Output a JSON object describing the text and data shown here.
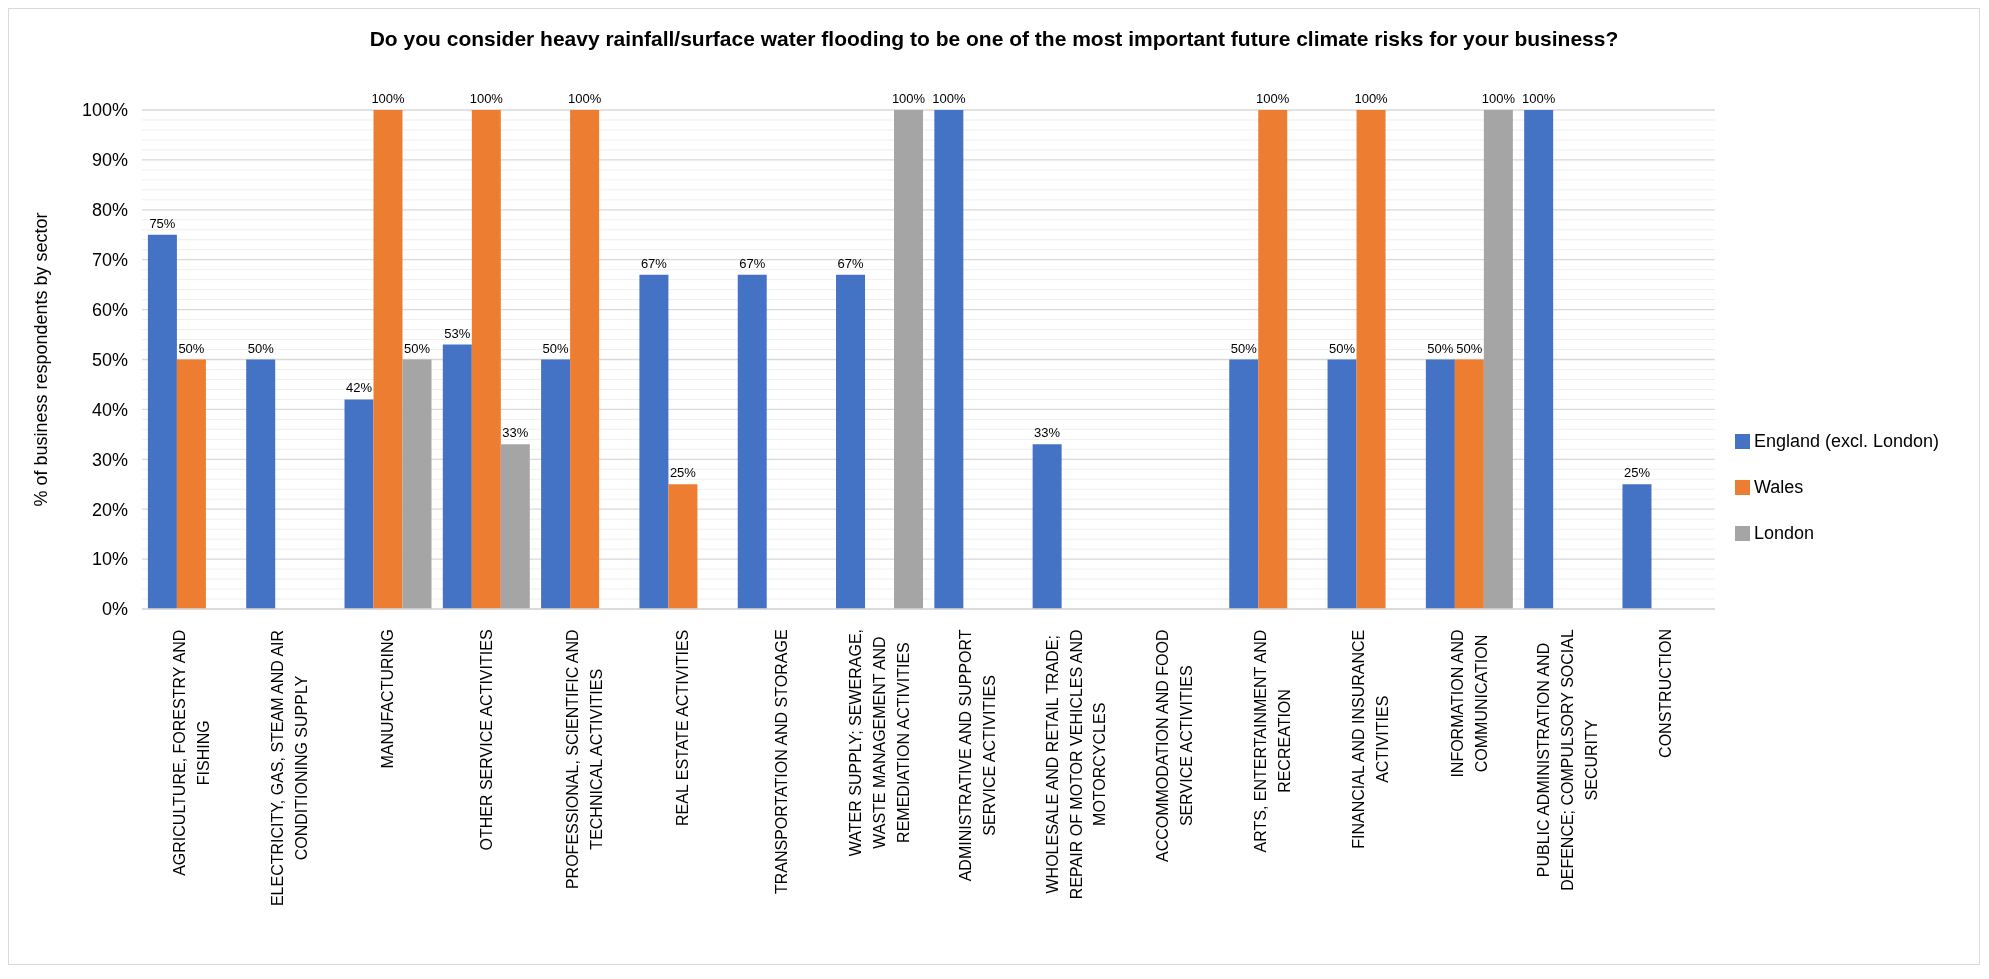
{
  "chart_data": {
    "type": "bar",
    "title": "Do you consider heavy rainfall/surface water flooding to be one of the most important future climate risks for your business?",
    "ylabel": "% of business respondents by sector",
    "categories": [
      "AGRICULTURE, FORESTRY AND FISHING",
      "ELECTRICITY, GAS, STEAM AND AIR CONDITIONING SUPPLY",
      "MANUFACTURING",
      "OTHER SERVICE ACTIVITIES",
      "PROFESSIONAL, SCIENTIFIC AND TECHNICAL ACTIVITIES",
      "REAL ESTATE ACTIVITIES",
      "TRANSPORTATION AND STORAGE",
      "WATER SUPPLY; SEWERAGE, WASTE MANAGEMENT AND REMEDIATION ACTIVITIES",
      "ADMINISTRATIVE AND SUPPORT SERVICE ACTIVITIES",
      "WHOLESALE AND RETAIL TRADE; REPAIR OF MOTOR VEHICLES AND MOTORCYCLES",
      "ACCOMMODATION AND FOOD SERVICE ACTIVITIES",
      "ARTS, ENTERTAINMENT AND RECREATION",
      "FINANCIAL AND INSURANCE ACTIVITIES",
      "INFORMATION AND COMMUNICATION",
      "PUBLIC ADMINISTRATION AND DEFENCE; COMPULSORY SOCIAL SECURITY",
      "CONSTRUCTION"
    ],
    "series": [
      {
        "name": "England (excl. London)",
        "color": "#4472c4",
        "values": [
          75,
          50,
          42,
          53,
          50,
          67,
          67,
          67,
          100,
          33,
          null,
          50,
          50,
          50,
          100,
          25
        ],
        "value_labels": [
          "75%",
          "50%",
          "42%",
          "53%",
          "50%",
          "67%",
          "67%",
          "67%",
          "100%",
          "33%",
          null,
          "50%",
          "50%",
          "50%",
          "100%",
          "25%"
        ]
      },
      {
        "name": "Wales",
        "color": "#ed7d31",
        "values": [
          50,
          null,
          100,
          100,
          100,
          25,
          null,
          null,
          null,
          null,
          null,
          100,
          100,
          50,
          null,
          null
        ],
        "value_labels": [
          "50%",
          null,
          "100%",
          "100%",
          "100%",
          "25%",
          null,
          null,
          null,
          null,
          null,
          "100%",
          "100%",
          "50%",
          null,
          null
        ]
      },
      {
        "name": "London",
        "color": "#a5a5a5",
        "values": [
          null,
          null,
          50,
          33,
          null,
          null,
          null,
          100,
          null,
          null,
          null,
          null,
          null,
          100,
          null,
          null
        ],
        "value_labels": [
          null,
          null,
          "50%",
          "33%",
          null,
          null,
          null,
          "100%",
          null,
          null,
          null,
          null,
          null,
          "100%",
          null,
          null
        ]
      }
    ],
    "ylim": [
      0,
      100
    ],
    "yticks": [
      {
        "value": 0,
        "label": "0%"
      },
      {
        "value": 2,
        "label": null
      },
      {
        "value": 4,
        "label": null
      },
      {
        "value": 6,
        "label": null
      },
      {
        "value": 8,
        "label": null
      },
      {
        "value": 10,
        "label": "10%"
      },
      {
        "value": 12,
        "label": null
      },
      {
        "value": 14,
        "label": null
      },
      {
        "value": 16,
        "label": null
      },
      {
        "value": 18,
        "label": null
      },
      {
        "value": 20,
        "label": "20%"
      },
      {
        "value": 22,
        "label": null
      },
      {
        "value": 24,
        "label": null
      },
      {
        "value": 26,
        "label": null
      },
      {
        "value": 28,
        "label": null
      },
      {
        "value": 30,
        "label": "30%"
      },
      {
        "value": 32,
        "label": null
      },
      {
        "value": 34,
        "label": null
      },
      {
        "value": 36,
        "label": null
      },
      {
        "value": 38,
        "label": null
      },
      {
        "value": 40,
        "label": "40%"
      },
      {
        "value": 42,
        "label": null
      },
      {
        "value": 44,
        "label": null
      },
      {
        "value": 46,
        "label": null
      },
      {
        "value": 48,
        "label": null
      },
      {
        "value": 50,
        "label": "50%"
      },
      {
        "value": 52,
        "label": null
      },
      {
        "value": 54,
        "label": null
      },
      {
        "value": 56,
        "label": null
      },
      {
        "value": 58,
        "label": null
      },
      {
        "value": 60,
        "label": "60%"
      },
      {
        "value": 62,
        "label": null
      },
      {
        "value": 64,
        "label": null
      },
      {
        "value": 66,
        "label": null
      },
      {
        "value": 68,
        "label": null
      },
      {
        "value": 70,
        "label": "70%"
      },
      {
        "value": 72,
        "label": null
      },
      {
        "value": 74,
        "label": null
      },
      {
        "value": 76,
        "label": null
      },
      {
        "value": 78,
        "label": null
      },
      {
        "value": 80,
        "label": "80%"
      },
      {
        "value": 82,
        "label": null
      },
      {
        "value": 84,
        "label": null
      },
      {
        "value": 86,
        "label": null
      },
      {
        "value": 88,
        "label": null
      },
      {
        "value": 90,
        "label": "90%"
      },
      {
        "value": 92,
        "label": null
      },
      {
        "value": 94,
        "label": null
      },
      {
        "value": 96,
        "label": null
      },
      {
        "value": 98,
        "label": null
      },
      {
        "value": 100,
        "label": "100%"
      }
    ],
    "grid": "y",
    "legend": "right"
  }
}
